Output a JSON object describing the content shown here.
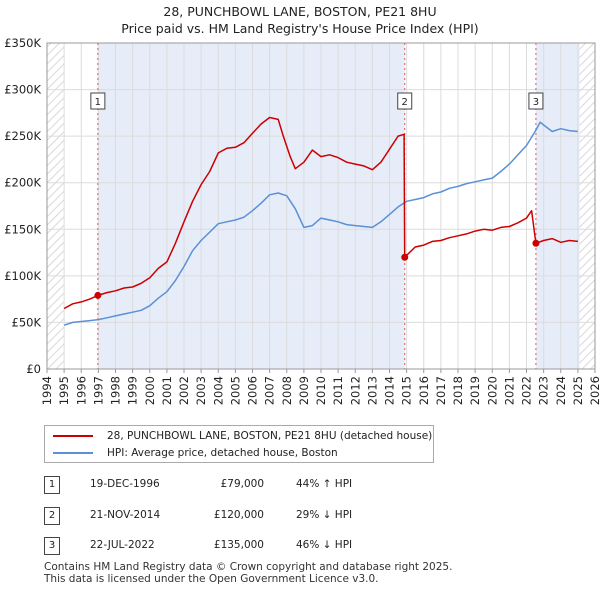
{
  "title": "28, PUNCHBOWL LANE, BOSTON, PE21 8HU",
  "subtitle": "Price paid vs. HM Land Registry's House Price Index (HPI)",
  "chart_data": {
    "type": "line",
    "xlim": [
      1994.0,
      2026.0
    ],
    "ylim": [
      0,
      350000
    ],
    "y_ticks": [
      0,
      50000,
      100000,
      150000,
      200000,
      250000,
      300000,
      350000
    ],
    "y_tick_labels": [
      "£0",
      "£50K",
      "£100K",
      "£150K",
      "£200K",
      "£250K",
      "£300K",
      "£350K"
    ],
    "x_ticks": [
      "1994",
      "1995",
      "1996",
      "1997",
      "1998",
      "1999",
      "2000",
      "2001",
      "2002",
      "2003",
      "2004",
      "2005",
      "2006",
      "2007",
      "2008",
      "2009",
      "2010",
      "2011",
      "2012",
      "2013",
      "2014",
      "2015",
      "2016",
      "2017",
      "2018",
      "2019",
      "2020",
      "2021",
      "2022",
      "2023",
      "2024",
      "2025",
      "2026"
    ],
    "grid": true,
    "hatched_ranges": [
      [
        1994.0,
        1995.0
      ],
      [
        2025.1,
        2026.0
      ]
    ],
    "shaded_ranges": [
      [
        1996.97,
        2014.89
      ],
      [
        2022.55,
        2025.1
      ]
    ],
    "series": [
      {
        "name": "28, PUNCHBOWL LANE, BOSTON, PE21 8HU (detached house)",
        "color": "#cc0000",
        "x": [
          1995.0,
          1995.5,
          1996.0,
          1996.5,
          1996.97,
          1997.5,
          1998.0,
          1998.5,
          1999.0,
          1999.5,
          2000.0,
          2000.5,
          2001.0,
          2001.5,
          2002.0,
          2002.5,
          2003.0,
          2003.5,
          2004.0,
          2004.5,
          2005.0,
          2005.5,
          2006.0,
          2006.5,
          2007.0,
          2007.5,
          2007.8,
          2008.2,
          2008.5,
          2009.0,
          2009.5,
          2010.0,
          2010.5,
          2011.0,
          2011.5,
          2012.0,
          2012.5,
          2013.0,
          2013.5,
          2014.0,
          2014.5,
          2014.85,
          2014.89,
          2015.5,
          2016.0,
          2016.5,
          2017.0,
          2017.5,
          2018.0,
          2018.5,
          2019.0,
          2019.5,
          2020.0,
          2020.5,
          2021.0,
          2021.5,
          2022.0,
          2022.3,
          2022.55,
          2023.0,
          2023.5,
          2024.0,
          2024.5,
          2025.0
        ],
        "y": [
          65000,
          70000,
          72000,
          75000,
          79000,
          82000,
          84000,
          87000,
          88000,
          92000,
          98000,
          108000,
          115000,
          135000,
          158000,
          180000,
          198000,
          212000,
          232000,
          237000,
          238000,
          243000,
          253000,
          263000,
          270000,
          268000,
          250000,
          228000,
          215000,
          222000,
          235000,
          228000,
          230000,
          227000,
          222000,
          220000,
          218000,
          214000,
          222000,
          236000,
          250000,
          252000,
          120000,
          131000,
          133000,
          137000,
          138000,
          141000,
          143000,
          145000,
          148000,
          150000,
          149000,
          152000,
          153000,
          157000,
          162000,
          170000,
          135000,
          138000,
          140000,
          136000,
          138000,
          137000
        ]
      },
      {
        "name": "HPI: Average price, detached house, Boston",
        "color": "#5b8fd6",
        "x": [
          1995.0,
          1995.5,
          1996.0,
          1996.5,
          1997.0,
          1997.5,
          1998.0,
          1998.5,
          1999.0,
          1999.5,
          2000.0,
          2000.5,
          2001.0,
          2001.5,
          2002.0,
          2002.5,
          2003.0,
          2003.5,
          2004.0,
          2004.5,
          2005.0,
          2005.5,
          2006.0,
          2006.5,
          2007.0,
          2007.5,
          2008.0,
          2008.5,
          2009.0,
          2009.5,
          2010.0,
          2010.5,
          2011.0,
          2011.5,
          2012.0,
          2012.5,
          2013.0,
          2013.5,
          2014.0,
          2014.5,
          2015.0,
          2015.5,
          2016.0,
          2016.5,
          2017.0,
          2017.5,
          2018.0,
          2018.5,
          2019.0,
          2019.5,
          2020.0,
          2020.5,
          2021.0,
          2021.5,
          2022.0,
          2022.5,
          2022.8,
          2023.0,
          2023.5,
          2024.0,
          2024.5,
          2025.0
        ],
        "y": [
          47000,
          50000,
          51000,
          52000,
          53000,
          55000,
          57000,
          59000,
          61000,
          63000,
          68000,
          76000,
          83000,
          95000,
          110000,
          127000,
          138000,
          147000,
          156000,
          158000,
          160000,
          163000,
          170000,
          178000,
          187000,
          189000,
          186000,
          172000,
          152000,
          154000,
          162000,
          160000,
          158000,
          155000,
          154000,
          153000,
          152000,
          158000,
          166000,
          174000,
          180000,
          182000,
          184000,
          188000,
          190000,
          194000,
          196000,
          199000,
          201000,
          203000,
          205000,
          212000,
          220000,
          230000,
          240000,
          255000,
          265000,
          262000,
          255000,
          258000,
          256000,
          255000
        ]
      }
    ],
    "markers": [
      {
        "label": "1",
        "x": 1996.97,
        "y": 79000
      },
      {
        "label": "2",
        "x": 2014.89,
        "y": 120000
      },
      {
        "label": "3",
        "x": 2022.55,
        "y": 135000
      }
    ]
  },
  "legend": {
    "items": [
      {
        "label": "28, PUNCHBOWL LANE, BOSTON, PE21 8HU (detached house)",
        "color": "#cc0000"
      },
      {
        "label": "HPI: Average price, detached house, Boston",
        "color": "#5b8fd6"
      }
    ]
  },
  "transactions": [
    {
      "num": "1",
      "date": "19-DEC-1996",
      "price": "£79,000",
      "hpi": "44% ↑ HPI"
    },
    {
      "num": "2",
      "date": "21-NOV-2014",
      "price": "£120,000",
      "hpi": "29% ↓ HPI"
    },
    {
      "num": "3",
      "date": "22-JUL-2022",
      "price": "£135,000",
      "hpi": "46% ↓ HPI"
    }
  ],
  "footer": {
    "line1": "Contains HM Land Registry data © Crown copyright and database right 2025.",
    "line2": "This data is licensed under the Open Government Licence v3.0."
  }
}
